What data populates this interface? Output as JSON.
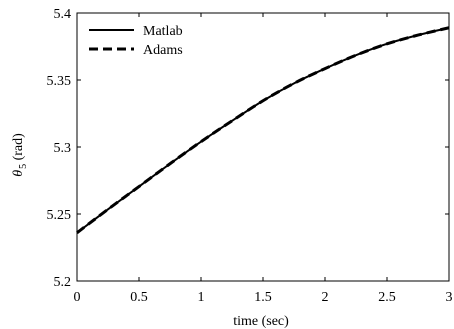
{
  "chart_data": {
    "type": "line",
    "title": "",
    "xlabel": "time (sec)",
    "ylabel_symbol": "θ",
    "ylabel_subscript": "5",
    "ylabel_unit": "(rad)",
    "xlim": [
      0,
      3
    ],
    "ylim": [
      5.2,
      5.4
    ],
    "xticks": [
      0,
      0.5,
      1,
      1.5,
      2,
      2.5,
      3
    ],
    "xtick_labels": [
      "0",
      "0.5",
      "1",
      "1.5",
      "2",
      "2.5",
      "3"
    ],
    "yticks": [
      5.2,
      5.25,
      5.3,
      5.35,
      5.4
    ],
    "ytick_labels": [
      "5.2",
      "5.25",
      "5.3",
      "5.35",
      "5.4"
    ],
    "grid": false,
    "legend_position": "top-left",
    "x": [
      0,
      0.25,
      0.5,
      0.75,
      1,
      1.25,
      1.5,
      1.75,
      2,
      2.25,
      2.5,
      2.75,
      3
    ],
    "series": [
      {
        "name": "Matlab",
        "style": "solid",
        "color": "#000000",
        "values": [
          5.236,
          5.2535,
          5.2705,
          5.2875,
          5.304,
          5.3195,
          5.3345,
          5.3475,
          5.3585,
          5.3685,
          5.377,
          5.3835,
          5.389
        ]
      },
      {
        "name": "Adams",
        "style": "dashed",
        "color": "#000000",
        "values": [
          5.236,
          5.2535,
          5.2705,
          5.2875,
          5.304,
          5.3195,
          5.3345,
          5.3475,
          5.3585,
          5.3685,
          5.377,
          5.3835,
          5.389
        ]
      }
    ]
  }
}
